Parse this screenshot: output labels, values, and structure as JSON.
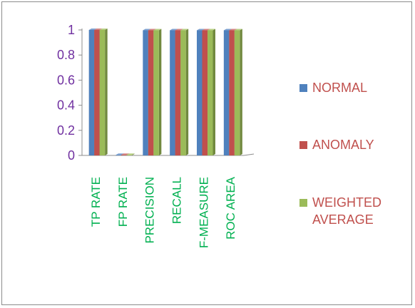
{
  "chart_data": {
    "type": "bar",
    "title": "",
    "xlabel": "",
    "ylabel": "",
    "ylim": [
      0,
      1
    ],
    "yticks": [
      "0",
      "0.2",
      "0.4",
      "0.6",
      "0.8",
      "1"
    ],
    "categories": [
      "TP RATE",
      "FP RATE",
      "PRECISION",
      "RECALL",
      "F-MEASURE",
      "ROC AREA"
    ],
    "series": [
      {
        "name": "NORMAL",
        "values": [
          1.0,
          0.0,
          0.997,
          0.997,
          0.997,
          0.997
        ]
      },
      {
        "name": "ANOMALY",
        "values": [
          1.0,
          0.0,
          0.997,
          0.997,
          0.997,
          0.997
        ]
      },
      {
        "name": "WEIGHTED AVERAGE",
        "values": [
          1.0,
          0.0,
          0.997,
          0.997,
          0.997,
          0.997
        ]
      }
    ],
    "colors": {
      "series_faces": [
        "#4f81bd",
        "#c0504d",
        "#9bbb59"
      ],
      "series_sides": [
        "#385d8a",
        "#8c3836",
        "#71893f"
      ],
      "series_tops": [
        "#7ea2d2",
        "#d58584",
        "#b9d186"
      ],
      "axis": "#8c8c8c",
      "ytick_text": "#7030a0",
      "xtick_text": "#00b050",
      "legend_text": "#c0504d"
    },
    "legend": {
      "position": "right",
      "labels": [
        "NORMAL",
        "ANOMALY",
        "WEIGHTED\nAVERAGE"
      ]
    },
    "style": "3d-clustered-column",
    "grid": false
  }
}
